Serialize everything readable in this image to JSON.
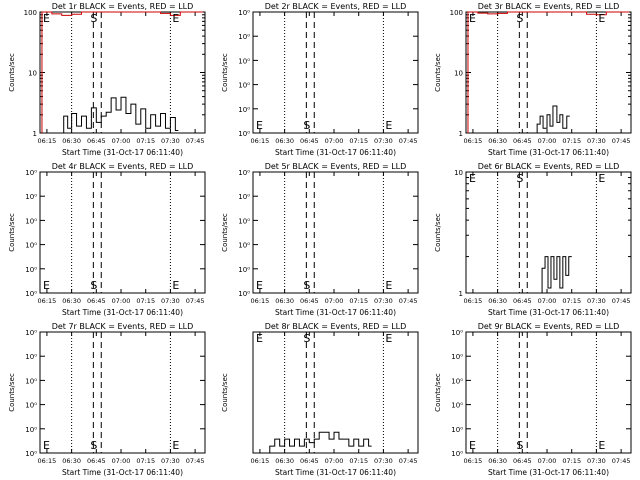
{
  "figure": {
    "ylabel": "Counts/sec",
    "xlabel": "Start Time (31-Oct-17 06:11:40)",
    "x_ticks": [
      "06:15",
      "06:30",
      "06:45",
      "07:00",
      "07:15",
      "07:30",
      "07:45"
    ],
    "marker_S": "S",
    "marker_E": "E",
    "colors": {
      "events": "#000000",
      "lld": "#cc0000",
      "axes": "#000000"
    }
  },
  "chart_data": [
    {
      "type": "line",
      "title": "Det 1r BLACK = Events, RED = LLD",
      "xlabel": "Start Time (31-Oct-17 06:11:40)",
      "ylabel": "Counts/sec",
      "xlim": [
        6.18,
        7.85
      ],
      "ylim": [
        1,
        100
      ],
      "scale": "log",
      "yticks": [
        {
          "v": 100,
          "label": "100"
        },
        {
          "v": 10,
          "label": "10"
        },
        {
          "v": 1,
          "label": "1"
        }
      ],
      "dotted_lines": [
        6.5,
        7.5
      ],
      "dashed_lines": [
        6.72,
        6.8
      ],
      "S_time": 6.72,
      "E_time": 7.5,
      "series": [
        {
          "name": "Events",
          "color": "#000000",
          "x": [
            6.42,
            6.46,
            6.5,
            6.55,
            6.6,
            6.65,
            6.7,
            6.75,
            6.8,
            6.85,
            6.9,
            6.95,
            7.0,
            7.05,
            7.1,
            7.15,
            7.2,
            7.25,
            7.3,
            7.35,
            7.4,
            7.45,
            7.5,
            7.55
          ],
          "values": [
            1.9,
            1.2,
            2.1,
            1.3,
            1.9,
            1.2,
            2.6,
            1.5,
            1.9,
            2.2,
            3.8,
            2.4,
            3.9,
            2.1,
            3.0,
            1.4,
            2.5,
            1.2,
            2.0,
            1.3,
            2.1,
            1.2,
            1.8,
            1.1
          ]
        },
        {
          "name": "LLD",
          "color": "#cc0000",
          "x": [
            6.2,
            6.3,
            6.4,
            6.5,
            6.6,
            6.7,
            6.8,
            6.9,
            7.0,
            7.1,
            7.2,
            7.3,
            7.4,
            7.5,
            7.6,
            7.7,
            7.8
          ],
          "values": [
            100,
            93,
            88,
            92,
            100,
            100,
            100,
            100,
            100,
            100,
            100,
            100,
            95,
            88,
            100,
            100,
            100
          ]
        }
      ]
    },
    {
      "type": "line",
      "title": "Det 2r BLACK = Events, RED = LLD",
      "xlabel": "Start Time (31-Oct-17 06:11:40)",
      "ylabel": "Counts/sec",
      "xlim": [
        6.18,
        7.85
      ],
      "ylim": [
        1,
        1.000001
      ],
      "scale": "log",
      "yticks": [
        {
          "v": 1.000001,
          "label": "10⁰"
        },
        {
          "v": 1.0000008,
          "label": "10⁰"
        },
        {
          "v": 1.0000006,
          "label": "10⁰"
        },
        {
          "v": 1.0000004,
          "label": "10⁰"
        },
        {
          "v": 1.0000002,
          "label": "10⁰"
        },
        {
          "v": 1,
          "label": "10⁰"
        }
      ],
      "dotted_lines": [
        6.5,
        7.5
      ],
      "dashed_lines": [
        6.72,
        6.8
      ],
      "S_time": 6.72,
      "E_time": 7.5,
      "series": []
    },
    {
      "type": "line",
      "title": "Det 3r BLACK = Events, RED = LLD",
      "xlabel": "Start Time (31-Oct-17 06:11:40)",
      "ylabel": "Counts/sec",
      "xlim": [
        6.18,
        7.85
      ],
      "ylim": [
        1,
        100
      ],
      "scale": "log",
      "yticks": [
        {
          "v": 100,
          "label": "100"
        },
        {
          "v": 10,
          "label": "10"
        },
        {
          "v": 1,
          "label": "1"
        }
      ],
      "dotted_lines": [
        6.5,
        7.5
      ],
      "dashed_lines": [
        6.72,
        6.8
      ],
      "S_time": 6.72,
      "E_time": 7.5,
      "series": [
        {
          "name": "Events",
          "color": "#000000",
          "x": [
            6.9,
            6.93,
            6.96,
            7.0,
            7.03,
            7.06,
            7.1,
            7.13,
            7.16,
            7.2
          ],
          "values": [
            1.4,
            1.9,
            1.2,
            2.0,
            1.3,
            2.8,
            1.5,
            2.0,
            1.2,
            1.9
          ]
        },
        {
          "name": "LLD",
          "color": "#cc0000",
          "x": [
            6.2,
            6.3,
            6.4,
            6.5,
            6.6,
            6.7,
            6.8,
            6.9,
            7.0,
            7.1,
            7.2,
            7.3,
            7.4,
            7.5,
            7.6,
            7.7,
            7.8
          ],
          "values": [
            100,
            96,
            93,
            95,
            100,
            100,
            100,
            100,
            100,
            100,
            100,
            100,
            92,
            90,
            100,
            100,
            100
          ]
        }
      ]
    },
    {
      "type": "line",
      "title": "Det 4r BLACK = Events, RED = LLD",
      "xlabel": "Start Time (31-Oct-17 06:11:40)",
      "ylabel": "Counts/sec",
      "xlim": [
        6.18,
        7.85
      ],
      "ylim": [
        1,
        1.000001
      ],
      "scale": "log",
      "yticks": [
        {
          "v": 1.000001,
          "label": "10⁰"
        },
        {
          "v": 1.0000008,
          "label": "10⁰"
        },
        {
          "v": 1.0000006,
          "label": "10⁰"
        },
        {
          "v": 1.0000004,
          "label": "10⁰"
        },
        {
          "v": 1.0000002,
          "label": "10⁰"
        },
        {
          "v": 1,
          "label": "10⁰"
        }
      ],
      "dotted_lines": [
        6.5,
        7.5
      ],
      "dashed_lines": [
        6.72,
        6.8
      ],
      "S_time": 6.72,
      "E_time": 7.5,
      "series": []
    },
    {
      "type": "line",
      "title": "Det 5r BLACK = Events, RED = LLD",
      "xlabel": "Start Time (31-Oct-17 06:11:40)",
      "ylabel": "Counts/sec",
      "xlim": [
        6.18,
        7.85
      ],
      "ylim": [
        1,
        1.000001
      ],
      "scale": "log",
      "yticks": [
        {
          "v": 1.000001,
          "label": "10⁰"
        },
        {
          "v": 1.0000008,
          "label": "10⁰"
        },
        {
          "v": 1.0000006,
          "label": "10⁰"
        },
        {
          "v": 1.0000004,
          "label": "10⁰"
        },
        {
          "v": 1.0000002,
          "label": "10⁰"
        },
        {
          "v": 1,
          "label": "10⁰"
        }
      ],
      "dotted_lines": [
        6.5,
        7.5
      ],
      "dashed_lines": [
        6.72,
        6.8
      ],
      "S_time": 6.72,
      "E_time": 7.5,
      "series": []
    },
    {
      "type": "line",
      "title": "Det 6r BLACK = Events, RED = LLD",
      "xlabel": "Start Time (31-Oct-17 06:11:40)",
      "ylabel": "Counts/sec",
      "xlim": [
        6.18,
        7.85
      ],
      "ylim": [
        1,
        10
      ],
      "scale": "log",
      "yticks": [
        {
          "v": 10,
          "label": "10"
        },
        {
          "v": 1,
          "label": "1"
        }
      ],
      "dotted_lines": [
        6.5,
        7.5
      ],
      "dashed_lines": [
        6.72,
        6.8
      ],
      "S_time": 6.72,
      "E_time": 7.5,
      "series": [
        {
          "name": "Events",
          "color": "#000000",
          "x": [
            6.95,
            6.98,
            7.01,
            7.04,
            7.07,
            7.1,
            7.13,
            7.16,
            7.19,
            7.22
          ],
          "values": [
            1.6,
            2.0,
            1.1,
            2.0,
            1.3,
            2.0,
            1.1,
            2.0,
            1.4,
            2.0
          ]
        }
      ]
    },
    {
      "type": "line",
      "title": "Det 7r BLACK = Events, RED = LLD",
      "xlabel": "Start Time (31-Oct-17 06:11:40)",
      "ylabel": "Counts/sec",
      "xlim": [
        6.18,
        7.85
      ],
      "ylim": [
        1,
        1.000001
      ],
      "scale": "log",
      "yticks": [
        {
          "v": 1.000001,
          "label": "10⁰"
        },
        {
          "v": 1.0000008,
          "label": "10⁰"
        },
        {
          "v": 1.0000006,
          "label": "10⁰"
        },
        {
          "v": 1.0000004,
          "label": "10⁰"
        },
        {
          "v": 1.0000002,
          "label": "10⁰"
        },
        {
          "v": 1,
          "label": "10⁰"
        }
      ],
      "dotted_lines": [
        6.5,
        7.5
      ],
      "dashed_lines": [
        6.72,
        6.8
      ],
      "S_time": 6.72,
      "E_time": 7.5,
      "series": []
    },
    {
      "type": "line",
      "title": "Det 8r BLACK = Events, RED = LLD",
      "xlabel": "Start Time (31-Oct-17 06:11:40)",
      "ylabel": "Counts/sec",
      "xlim": [
        6.18,
        7.85
      ],
      "ylim": [
        1,
        1.0000035
      ],
      "scale": "linear",
      "yticks": [],
      "dotted_lines": [
        6.5,
        7.5
      ],
      "dashed_lines": [
        6.72,
        6.8
      ],
      "S_time": 6.72,
      "E_time": 7.5,
      "series": [
        {
          "name": "Events",
          "color": "#000000",
          "x": [
            6.35,
            6.4,
            6.45,
            6.5,
            6.55,
            6.6,
            6.65,
            6.7,
            6.75,
            6.8,
            6.85,
            6.9,
            6.95,
            7.0,
            7.05,
            7.1,
            7.15,
            7.2,
            7.25,
            7.3,
            7.35
          ],
          "values": [
            1.0000002,
            1.0000004,
            1.0000002,
            1.0000004,
            1.0000002,
            1.0000004,
            1.0000002,
            1.0000004,
            1.0000003,
            1.0000004,
            1.0000006,
            1.0000006,
            1.0000004,
            1.0000006,
            1.0000004,
            1.0000004,
            1.0000002,
            1.0000004,
            1.0000002,
            1.0000004,
            1.0000002
          ]
        }
      ]
    },
    {
      "type": "line",
      "title": "Det 9r BLACK = Events, RED = LLD",
      "xlabel": "Start Time (31-Oct-17 06:11:40)",
      "ylabel": "Counts/sec",
      "xlim": [
        6.18,
        7.85
      ],
      "ylim": [
        1,
        1.000001
      ],
      "scale": "log",
      "yticks": [
        {
          "v": 1.000001,
          "label": "10⁰"
        },
        {
          "v": 1.0000008,
          "label": "10⁰"
        },
        {
          "v": 1.0000006,
          "label": "10⁰"
        },
        {
          "v": 1.0000004,
          "label": "10⁰"
        },
        {
          "v": 1.0000002,
          "label": "10⁰"
        },
        {
          "v": 1,
          "label": "10⁰"
        }
      ],
      "dotted_lines": [
        6.5,
        7.5
      ],
      "dashed_lines": [
        6.72,
        6.8
      ],
      "S_time": 6.72,
      "E_time": 7.5,
      "series": []
    }
  ]
}
